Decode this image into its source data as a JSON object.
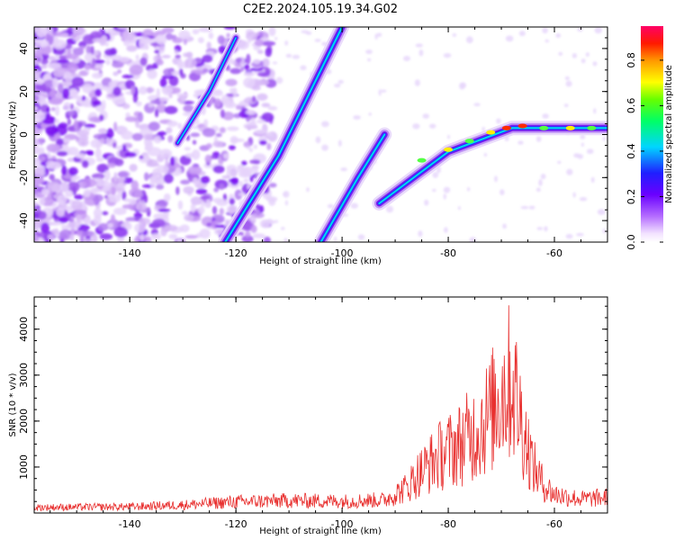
{
  "title": "C2E2.2024.105.19.34.G02",
  "chart_data": [
    {
      "type": "heatmap",
      "xlabel": "Height of straight line (km)",
      "ylabel": "Frequency (Hz)",
      "xlim": [
        -158,
        -50
      ],
      "ylim": [
        -50,
        50
      ],
      "xticks": [
        -140,
        -120,
        -100,
        -80,
        -60
      ],
      "yticks": [
        -40,
        -20,
        0,
        20,
        40
      ],
      "colorbar": {
        "label": "Normalized spectral amplitude",
        "range": [
          0,
          0.95
        ],
        "ticks": [
          0.0,
          0.2,
          0.4,
          0.6,
          0.8
        ],
        "colormap": "rainbow: white-violet-purple-blue-cyan-green-yellow-orange-red"
      },
      "features": [
        {
          "points": [
            [
              -122,
              -50
            ],
            [
              -112,
              -10
            ],
            [
              -100,
              50
            ]
          ]
        },
        {
          "points": [
            [
              -104,
              -50
            ],
            [
              -97,
              -20
            ],
            [
              -92,
              0
            ]
          ]
        },
        {
          "points": [
            [
              -93,
              -32
            ],
            [
              -80,
              -8
            ],
            [
              -68,
              3
            ],
            [
              -50,
              3
            ]
          ]
        },
        {
          "points": [
            [
              -131,
              -4
            ],
            [
              -125,
              20
            ],
            [
              -120,
              45
            ]
          ]
        }
      ]
    },
    {
      "type": "line",
      "xlabel": "Height of straight line (km)",
      "ylabel": "SNR (10 * v/v)",
      "xlim": [
        -158,
        -50
      ],
      "ylim": [
        0,
        4700
      ],
      "xticks": [
        -140,
        -120,
        -100,
        -80,
        -60
      ],
      "yticks": [
        1000,
        2000,
        3000,
        4000
      ],
      "color": "#e8302f",
      "envelope": [
        [
          -158,
          180
        ],
        [
          -140,
          200
        ],
        [
          -130,
          260
        ],
        [
          -120,
          360
        ],
        [
          -110,
          400
        ],
        [
          -100,
          380
        ],
        [
          -92,
          420
        ],
        [
          -88,
          800
        ],
        [
          -86,
          1200
        ],
        [
          -82,
          1800
        ],
        [
          -78,
          2200
        ],
        [
          -75,
          2600
        ],
        [
          -72,
          3200
        ],
        [
          -70,
          3900
        ],
        [
          -68,
          4300
        ],
        [
          -66,
          2800
        ],
        [
          -64,
          1500
        ],
        [
          -62,
          900
        ],
        [
          -60,
          600
        ],
        [
          -55,
          450
        ],
        [
          -50,
          500
        ]
      ]
    }
  ]
}
